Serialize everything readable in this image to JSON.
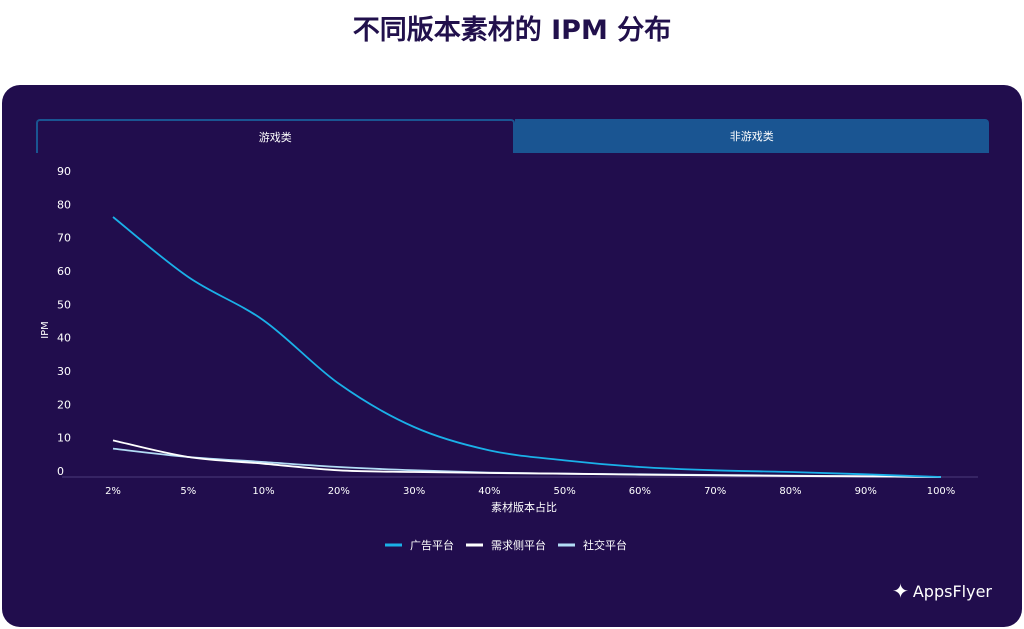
{
  "title": "不同版本素材的 IPM 分布",
  "tabs": [
    {
      "label": "游戏类",
      "active": true
    },
    {
      "label": "非游戏类",
      "active": false
    }
  ],
  "logo": "AppsFlyer",
  "chart_data": {
    "type": "line",
    "xlabel": "素材版本占比",
    "ylabel": "IPM",
    "categories": [
      "2%",
      "5%",
      "10%",
      "20%",
      "30%",
      "40%",
      "50%",
      "60%",
      "70%",
      "80%",
      "90%",
      "100%"
    ],
    "ylim": [
      0,
      90
    ],
    "yticks": [
      0,
      10,
      20,
      30,
      40,
      50,
      60,
      70,
      80,
      90
    ],
    "grid": false,
    "legend_position": "bottom",
    "series": [
      {
        "name": "广告平台",
        "color": "#1ab0e8",
        "values": [
          78,
          60,
          47,
          28,
          15,
          8,
          5,
          3,
          2,
          1.5,
          0.8,
          0
        ]
      },
      {
        "name": "需求侧平台",
        "color": "#ffffff",
        "values": [
          11,
          6,
          4,
          2,
          1.5,
          1.2,
          1,
          0.7,
          0.5,
          0.3,
          0.2,
          0
        ]
      },
      {
        "name": "社交平台",
        "color": "#b3dcf5",
        "values": [
          8.5,
          6,
          4.5,
          3,
          2,
          1.3,
          1,
          0.8,
          0.6,
          0.4,
          0.2,
          0
        ]
      }
    ]
  }
}
